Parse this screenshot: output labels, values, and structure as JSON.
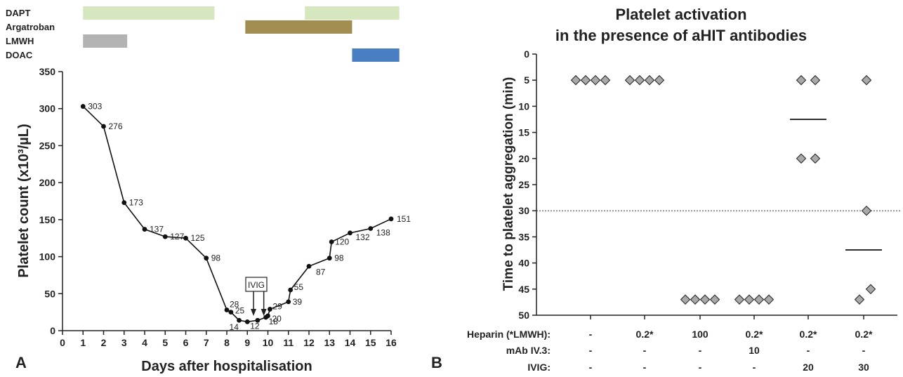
{
  "panel_a": {
    "label": "A",
    "therapy_rows": [
      {
        "name": "DAPT",
        "color": "#d6e6bf",
        "periods": [
          [
            1,
            7.4
          ],
          [
            11.8,
            16.4
          ]
        ]
      },
      {
        "name": "Argatroban",
        "color": "#a08d4f",
        "periods": [
          [
            8.9,
            14.1
          ]
        ]
      },
      {
        "name": "LMWH",
        "color": "#b3b3b3",
        "periods": [
          [
            1,
            3.15
          ]
        ]
      },
      {
        "name": "DOAC",
        "color": "#4a7ec2",
        "periods": [
          [
            14.1,
            16.4
          ]
        ]
      }
    ],
    "annotation": {
      "text": "IVIG",
      "arrow_days": [
        9.3,
        9.8
      ]
    }
  },
  "panel_b": {
    "label": "B",
    "title_line1": "Platelet activation",
    "title_line2": "in the presence of aHIT antibodies",
    "row_labels": [
      "Heparin (*LMWH):",
      "mAb IV.3:",
      "IVIG:"
    ],
    "columns": [
      {
        "heparin": "-",
        "mab": "-",
        "ivig": "-"
      },
      {
        "heparin": "0.2*",
        "mab": "-",
        "ivig": "-"
      },
      {
        "heparin": "100",
        "mab": "-",
        "ivig": "-"
      },
      {
        "heparin": "0.2*",
        "mab": "10",
        "ivig": "-"
      },
      {
        "heparin": "0.2*",
        "mab": "-",
        "ivig": "20"
      },
      {
        "heparin": "0.2*",
        "mab": "-",
        "ivig": "30"
      }
    ]
  },
  "chart_data": [
    {
      "type": "line",
      "xlabel": "Days after hospitalisation",
      "ylabel": "Platelet count (x10³/µL)",
      "xlim": [
        0,
        16
      ],
      "ylim": [
        0,
        350
      ],
      "xticks": [
        0,
        1,
        2,
        3,
        4,
        5,
        6,
        7,
        8,
        9,
        10,
        11,
        12,
        13,
        14,
        15,
        16
      ],
      "yticks": [
        0,
        50,
        100,
        150,
        200,
        250,
        300,
        350
      ],
      "grid": false,
      "points": [
        {
          "x": 1,
          "y": 303,
          "label": "303"
        },
        {
          "x": 2,
          "y": 276,
          "label": "276"
        },
        {
          "x": 3,
          "y": 173,
          "label": "173"
        },
        {
          "x": 4,
          "y": 137,
          "label": "137"
        },
        {
          "x": 5,
          "y": 127,
          "label": "127"
        },
        {
          "x": 6,
          "y": 125,
          "label": "125"
        },
        {
          "x": 7,
          "y": 98,
          "label": "98"
        },
        {
          "x": 8,
          "y": 28,
          "label": "28"
        },
        {
          "x": 8.2,
          "y": 25,
          "label": "25"
        },
        {
          "x": 8.6,
          "y": 14,
          "label": "14"
        },
        {
          "x": 9,
          "y": 12,
          "label": "12"
        },
        {
          "x": 9.5,
          "y": 14,
          "label": ""
        },
        {
          "x": 9.9,
          "y": 18,
          "label": "18"
        },
        {
          "x": 10,
          "y": 20,
          "label": "20"
        },
        {
          "x": 10.1,
          "y": 29,
          "label": "29"
        },
        {
          "x": 11,
          "y": 39,
          "label": "39"
        },
        {
          "x": 11.1,
          "y": 55,
          "label": "55"
        },
        {
          "x": 12,
          "y": 87,
          "label": "87"
        },
        {
          "x": 13,
          "y": 98,
          "label": "98"
        },
        {
          "x": 13.1,
          "y": 120,
          "label": "120"
        },
        {
          "x": 14,
          "y": 132,
          "label": "132"
        },
        {
          "x": 15,
          "y": 138,
          "label": "138"
        },
        {
          "x": 16,
          "y": 151,
          "label": "151"
        }
      ]
    },
    {
      "type": "scatter",
      "ylabel": "Time to platelet aggregation (min)",
      "ylim": [
        0,
        50
      ],
      "y_inverted": true,
      "yticks": [
        0,
        5,
        10,
        15,
        20,
        25,
        30,
        35,
        40,
        45,
        50
      ],
      "reference_line": 30,
      "groups": [
        {
          "points": [
            5,
            5,
            5,
            5
          ],
          "mean": null
        },
        {
          "points": [
            5,
            5,
            5,
            5
          ],
          "mean": null
        },
        {
          "points": [
            47,
            47,
            47,
            47
          ],
          "mean": null
        },
        {
          "points": [
            47,
            47,
            47,
            47
          ],
          "mean": null
        },
        {
          "points": [
            5,
            5,
            20,
            20
          ],
          "mean": 12.5
        },
        {
          "points": [
            5,
            30,
            45,
            47
          ],
          "mean": 37.5
        }
      ]
    }
  ]
}
